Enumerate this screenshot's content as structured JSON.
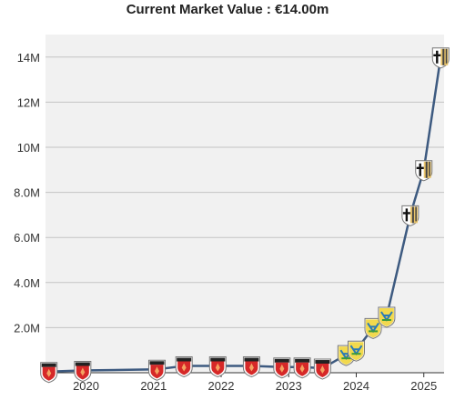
{
  "chart_data": {
    "type": "line",
    "title": "Current Market Value : €14.00m",
    "xlabel": "",
    "ylabel": "",
    "ylim": [
      0,
      15000000
    ],
    "y_ticks": [
      {
        "value": 2000000,
        "label": "2.0M"
      },
      {
        "value": 4000000,
        "label": "4.0M"
      },
      {
        "value": 6000000,
        "label": "6.0M"
      },
      {
        "value": 8000000,
        "label": "8.0M"
      },
      {
        "value": 10000000,
        "label": "10M"
      },
      {
        "value": 12000000,
        "label": "12M"
      },
      {
        "value": 14000000,
        "label": "14M"
      }
    ],
    "xlim": [
      2019.4,
      2025.3
    ],
    "x_ticks": [
      {
        "value": 2020,
        "label": "2020"
      },
      {
        "value": 2021,
        "label": "2021"
      },
      {
        "value": 2022,
        "label": "2022"
      },
      {
        "value": 2023,
        "label": "2023"
      },
      {
        "value": 2024,
        "label": "2024"
      },
      {
        "value": 2025,
        "label": "2025"
      }
    ],
    "grid": true,
    "line_color": "#3d5a80",
    "series": [
      {
        "x": [
          2019.45,
          2019.95,
          2021.05,
          2021.45,
          2021.95,
          2022.45,
          2022.9,
          2023.2,
          2023.5,
          2023.85,
          2024.0,
          2024.25,
          2024.45,
          2024.8,
          2025.0,
          2025.25
        ],
        "values": [
          50000,
          100000,
          150000,
          300000,
          300000,
          300000,
          250000,
          250000,
          200000,
          800000,
          1000000,
          2000000,
          2500000,
          7000000,
          9000000,
          14000000
        ],
        "club": [
          "red",
          "red",
          "red",
          "red",
          "red",
          "red",
          "red",
          "red",
          "red",
          "yellow-green",
          "yellow-green",
          "yellow-green",
          "yellow-green",
          "black-yellow",
          "black-yellow",
          "black-yellow"
        ]
      }
    ]
  }
}
